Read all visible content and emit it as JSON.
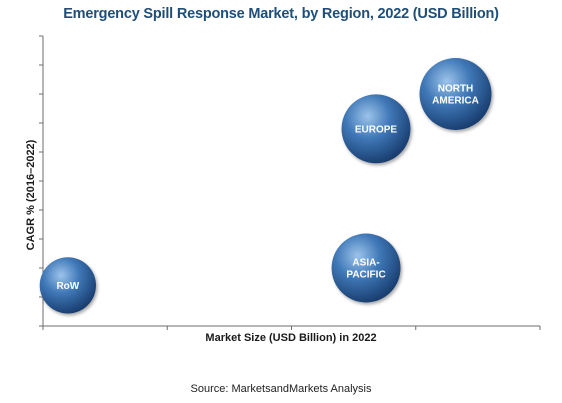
{
  "chart_data": {
    "type": "scatter",
    "subtype": "bubble",
    "title": "Emergency Spill Response Market, by Region, 2022 (USD Billion)",
    "xlabel": "Market Size (USD Billion) in 2022",
    "ylabel": "CAGR % (2016–2022)",
    "source": "Source: MarketsandMarkets Analysis",
    "grid": false,
    "xlim": [
      0,
      100
    ],
    "ylim": [
      0,
      100
    ],
    "series": [
      {
        "label_lines": [
          "NORTH",
          "AMERICA"
        ],
        "x": 83,
        "y": 80,
        "size": 36
      },
      {
        "label_lines": [
          "EUROPE"
        ],
        "x": 67,
        "y": 68,
        "size": 33
      },
      {
        "label_lines": [
          "ASIA-",
          "PACIFIC"
        ],
        "x": 65,
        "y": 20,
        "size": 33
      },
      {
        "label_lines": [
          "RoW"
        ],
        "x": 5,
        "y": 14,
        "size": 22
      }
    ],
    "colors": {
      "bubble_light": "#9cc3ea",
      "bubble_mid": "#3f78b7",
      "bubble_dark": "#173a6b",
      "title": "#1f4e79"
    }
  }
}
